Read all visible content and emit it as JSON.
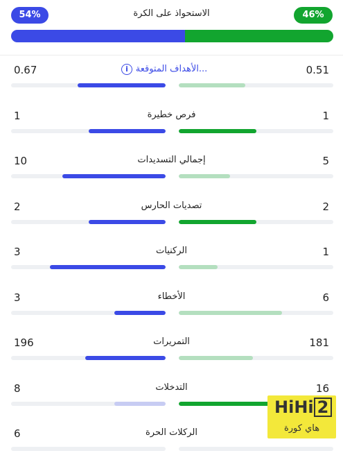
{
  "possession": {
    "title": "الاستحواذ على الكرة",
    "left_value": "54%",
    "right_value": "46%",
    "left_pct": 54,
    "right_pct": 46,
    "left_color": "#3b4ae6",
    "right_color": "#12a52f"
  },
  "stats": [
    {
      "label": "الأهداف المتوقعة...",
      "left": "0.67",
      "right": "0.51",
      "left_frac": 0.57,
      "right_frac": 0.43,
      "left_color": "#3b4ae6",
      "right_color": "#b4dfbf",
      "info": true
    },
    {
      "label": "فرص خطيرة",
      "left": "1",
      "right": "1",
      "left_frac": 0.5,
      "right_frac": 0.5,
      "left_color": "#3b4ae6",
      "right_color": "#12a52f"
    },
    {
      "label": "إجمالي التسديدات",
      "left": "10",
      "right": "5",
      "left_frac": 0.67,
      "right_frac": 0.33,
      "left_color": "#3b4ae6",
      "right_color": "#b4dfbf"
    },
    {
      "label": "تصديات الحارس",
      "left": "2",
      "right": "2",
      "left_frac": 0.5,
      "right_frac": 0.5,
      "left_color": "#3b4ae6",
      "right_color": "#12a52f"
    },
    {
      "label": "الركنيات",
      "left": "3",
      "right": "1",
      "left_frac": 0.75,
      "right_frac": 0.25,
      "left_color": "#3b4ae6",
      "right_color": "#b4dfbf"
    },
    {
      "label": "الأخطاء",
      "left": "3",
      "right": "6",
      "left_frac": 0.33,
      "right_frac": 0.67,
      "left_color": "#3b4ae6",
      "right_color": "#b4dfbf"
    },
    {
      "label": "التمريرات",
      "left": "196",
      "right": "181",
      "left_frac": 0.52,
      "right_frac": 0.48,
      "left_color": "#3b4ae6",
      "right_color": "#b4dfbf"
    },
    {
      "label": "التدخلات",
      "left": "8",
      "right": "16",
      "left_frac": 0.33,
      "right_frac": 0.67,
      "left_color": "#c7ccf3",
      "right_color": "#12a52f"
    },
    {
      "label": "الركلات الحرة",
      "left": "6",
      "right": "",
      "left_frac": 0,
      "right_frac": 0,
      "left_color": "#3b4ae6",
      "right_color": "#b4dfbf"
    }
  ],
  "watermark": {
    "logo_left": "HiHi",
    "logo_right": "2",
    "sub": "هاي كورة"
  }
}
